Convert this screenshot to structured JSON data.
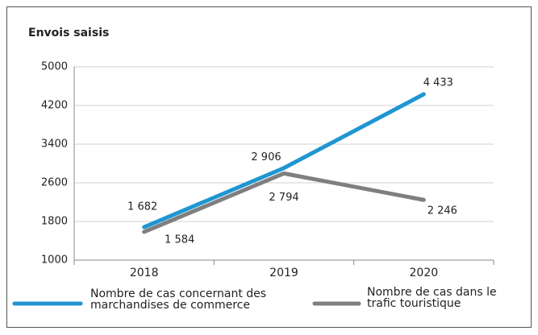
{
  "chart_data": {
    "type": "line",
    "title": "Envois saisis",
    "categories": [
      "2018",
      "2019",
      "2020"
    ],
    "series": [
      {
        "name": "Nombre de cas concernant des marchandises de commerce",
        "color": "#1f96d2",
        "values": [
          1682,
          2906,
          4433
        ],
        "value_labels": [
          "1 682",
          "2 906",
          "4 433"
        ]
      },
      {
        "name": "Nombre de cas dans le trafic touristique",
        "color": "#7f7f7f",
        "values": [
          1584,
          2794,
          2246
        ],
        "value_labels": [
          "1 584",
          "2 794",
          "2 246"
        ]
      }
    ],
    "ylim": [
      1000,
      5000
    ],
    "yticks": [
      1000,
      1800,
      2600,
      3400,
      4200,
      5000
    ],
    "grid": true
  }
}
